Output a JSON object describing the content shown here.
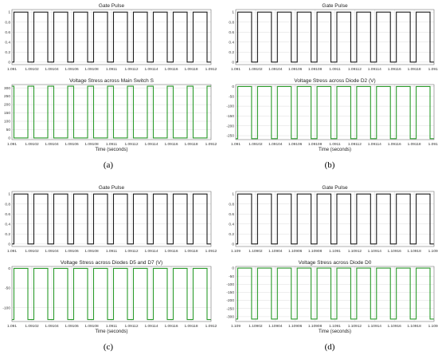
{
  "panel_labels": [
    "(a)",
    "(b)",
    "(c)",
    "(d)"
  ],
  "colors": {
    "gate": "#1a1a1a",
    "stress": "#2a9a2a",
    "grid": "#dcdcdc",
    "frame": "#7a7a7a"
  },
  "chart_data": [
    {
      "type": "line",
      "panel": "(a)",
      "title": "Gate Pulse",
      "xlabel": "",
      "ylabel": "",
      "xlim": [
        1.091,
        1.0912
      ],
      "ylim": [
        -0.05,
        1.05
      ],
      "xticks": [
        1.091,
        1.09102,
        1.09104,
        1.09106,
        1.09108,
        1.0911,
        1.09112,
        1.09114,
        1.09116,
        1.09118,
        1.0912
      ],
      "xtick_labels": [
        "1.091",
        "1.09102",
        "1.09104",
        "1.09106",
        "1.09108",
        "1.0911",
        "1.09112",
        "1.09114",
        "1.09116",
        "1.09118",
        "1.0912"
      ],
      "yticks": [
        0,
        0.2,
        0.4,
        0.6,
        0.8,
        1
      ],
      "ytick_labels": [
        "0",
        "0.2",
        "0.4",
        "0.6",
        "0.8",
        "1"
      ],
      "grid": true,
      "color": "gate",
      "waveform": {
        "period": 2e-05,
        "duty": 0.7,
        "phase": 2e-06,
        "high": 1,
        "low": 0
      }
    },
    {
      "type": "line",
      "panel": "(a)",
      "title": "Voltage Stress across Main Switch S",
      "xlabel": "Time (seconds)",
      "ylabel": "",
      "xlim": [
        1.091,
        1.0912
      ],
      "ylim": [
        -10,
        320
      ],
      "xticks": [
        1.091,
        1.09102,
        1.09104,
        1.09106,
        1.09108,
        1.0911,
        1.09112,
        1.09114,
        1.09116,
        1.09118,
        1.0912
      ],
      "xtick_labels": [
        "1.091",
        "1.09102",
        "1.09104",
        "1.09106",
        "1.09108",
        "1.0911",
        "1.09112",
        "1.09114",
        "1.09116",
        "1.09118",
        "1.0912"
      ],
      "yticks": [
        0,
        50,
        100,
        150,
        200,
        250,
        300
      ],
      "ytick_labels": [
        "0",
        "50",
        "100",
        "150",
        "200",
        "250",
        "300"
      ],
      "grid": true,
      "color": "stress",
      "waveform": {
        "period": 2e-05,
        "duty": 0.3,
        "phase": 1.6e-05,
        "high": 310,
        "low": 0
      }
    },
    {
      "type": "line",
      "panel": "(b)",
      "title": "Gate Pulse",
      "xlabel": "",
      "ylabel": "",
      "xlim": [
        1.091,
        1.0912
      ],
      "ylim": [
        -0.05,
        1.05
      ],
      "xticks": [
        1.091,
        1.09102,
        1.09104,
        1.09106,
        1.09108,
        1.0911,
        1.09112,
        1.09114,
        1.09116,
        1.09118,
        1.0912
      ],
      "xtick_labels": [
        "1.091",
        "1.09102",
        "1.09104",
        "1.09106",
        "1.09108",
        "1.0911",
        "1.09112",
        "1.09114",
        "1.09116",
        "1.09118",
        "1.0912"
      ],
      "yticks": [
        0,
        0.2,
        0.4,
        0.6,
        0.8,
        1
      ],
      "ytick_labels": [
        "0",
        "0.2",
        "0.4",
        "0.6",
        "0.8",
        "1"
      ],
      "grid": true,
      "color": "gate",
      "waveform": {
        "period": 2e-05,
        "duty": 0.7,
        "phase": 2e-06,
        "high": 1,
        "low": 0
      }
    },
    {
      "type": "line",
      "panel": "(b)",
      "title": "Voltage Stress across Diode D2 (V)",
      "xlabel": "Time (seconds)",
      "ylabel": "",
      "xlim": [
        1.091,
        1.0912
      ],
      "ylim": [
        -270,
        10
      ],
      "xticks": [
        1.091,
        1.09102,
        1.09104,
        1.09106,
        1.09108,
        1.0911,
        1.09112,
        1.09114,
        1.09116,
        1.09118,
        1.0912
      ],
      "xtick_labels": [
        "1.091",
        "1.09102",
        "1.09104",
        "1.09106",
        "1.09108",
        "1.0911",
        "1.09112",
        "1.09114",
        "1.09116",
        "1.09118",
        "1.0912"
      ],
      "yticks": [
        0,
        -50,
        -100,
        -150,
        -200,
        -250
      ],
      "ytick_labels": [
        "0",
        "-50",
        "-100",
        "-150",
        "-200",
        "-250"
      ],
      "grid": true,
      "color": "stress",
      "waveform": {
        "period": 2e-05,
        "duty": 0.7,
        "phase": 2e-06,
        "high": 0,
        "low": -265
      }
    },
    {
      "type": "line",
      "panel": "(c)",
      "title": "Gate Pulse",
      "xlabel": "",
      "ylabel": "",
      "xlim": [
        1.091,
        1.0912
      ],
      "ylim": [
        -0.05,
        1.05
      ],
      "xticks": [
        1.091,
        1.09102,
        1.09104,
        1.09106,
        1.09108,
        1.0911,
        1.09112,
        1.09114,
        1.09116,
        1.09118,
        1.0912
      ],
      "xtick_labels": [
        "1.091",
        "1.09102",
        "1.09104",
        "1.09106",
        "1.09108",
        "1.0911",
        "1.09112",
        "1.09114",
        "1.09116",
        "1.09118",
        "1.0912"
      ],
      "yticks": [
        0,
        0.2,
        0.4,
        0.6,
        0.8,
        1
      ],
      "ytick_labels": [
        "0",
        "0.2",
        "0.4",
        "0.6",
        "0.8",
        "1"
      ],
      "grid": true,
      "color": "gate",
      "waveform": {
        "period": 2e-05,
        "duty": 0.7,
        "phase": 2e-06,
        "high": 1,
        "low": 0
      }
    },
    {
      "type": "line",
      "panel": "(c)",
      "title": "Voltage Stress across Diodes D5 and D7 (V)",
      "xlabel": "Time (seconds)",
      "ylabel": "",
      "xlim": [
        1.091,
        1.0912
      ],
      "ylim": [
        -135,
        5
      ],
      "xticks": [
        1.091,
        1.09102,
        1.09104,
        1.09106,
        1.09108,
        1.0911,
        1.09112,
        1.09114,
        1.09116,
        1.09118,
        1.0912
      ],
      "xtick_labels": [
        "1.091",
        "1.09102",
        "1.09104",
        "1.09106",
        "1.09108",
        "1.0911",
        "1.09112",
        "1.09114",
        "1.09116",
        "1.09118",
        "1.0912"
      ],
      "yticks": [
        0,
        -50,
        -100
      ],
      "ytick_labels": [
        "0",
        "-50",
        "-100"
      ],
      "grid": true,
      "color": "stress",
      "waveform": {
        "period": 2e-05,
        "duty": 0.7,
        "phase": 2e-06,
        "high": 0,
        "low": -130
      }
    },
    {
      "type": "line",
      "panel": "(d)",
      "title": "Gate Pulse",
      "xlabel": "",
      "ylabel": "",
      "xlim": [
        1.109,
        1.1092
      ],
      "ylim": [
        -0.05,
        1.05
      ],
      "xticks": [
        1.109,
        1.10902,
        1.10904,
        1.10906,
        1.10908,
        1.1091,
        1.10912,
        1.10914,
        1.10916,
        1.10918,
        1.1092
      ],
      "xtick_labels": [
        "1.109",
        "1.10902",
        "1.10904",
        "1.10906",
        "1.10908",
        "1.1091",
        "1.10912",
        "1.10914",
        "1.10916",
        "1.10918",
        "1.1092"
      ],
      "yticks": [
        0,
        0.2,
        0.4,
        0.6,
        0.8,
        1
      ],
      "ytick_labels": [
        "0",
        "0.2",
        "0.4",
        "0.6",
        "0.8",
        "1"
      ],
      "grid": true,
      "color": "gate",
      "waveform": {
        "period": 2e-05,
        "duty": 0.7,
        "phase": 2e-06,
        "high": 1,
        "low": 0
      }
    },
    {
      "type": "line",
      "panel": "(d)",
      "title": "Voltage Stress across Diode D0",
      "xlabel": "Time (seconds)",
      "ylabel": "",
      "xlim": [
        1.109,
        1.1092
      ],
      "ylim": [
        -330,
        10
      ],
      "xticks": [
        1.109,
        1.10902,
        1.10904,
        1.10906,
        1.10908,
        1.1091,
        1.10912,
        1.10914,
        1.10916,
        1.10918,
        1.1092
      ],
      "xtick_labels": [
        "1.109",
        "1.10902",
        "1.10904",
        "1.10906",
        "1.10908",
        "1.1091",
        "1.10912",
        "1.10914",
        "1.10916",
        "1.10918",
        "1.1092"
      ],
      "yticks": [
        0,
        -50,
        -100,
        -150,
        -200,
        -250,
        -300
      ],
      "ytick_labels": [
        "0",
        "-50",
        "-100",
        "-150",
        "-200",
        "-250",
        "-300"
      ],
      "grid": true,
      "color": "stress",
      "waveform": {
        "period": 2e-05,
        "duty": 0.7,
        "phase": 2e-06,
        "high": 0,
        "low": -315
      }
    }
  ]
}
